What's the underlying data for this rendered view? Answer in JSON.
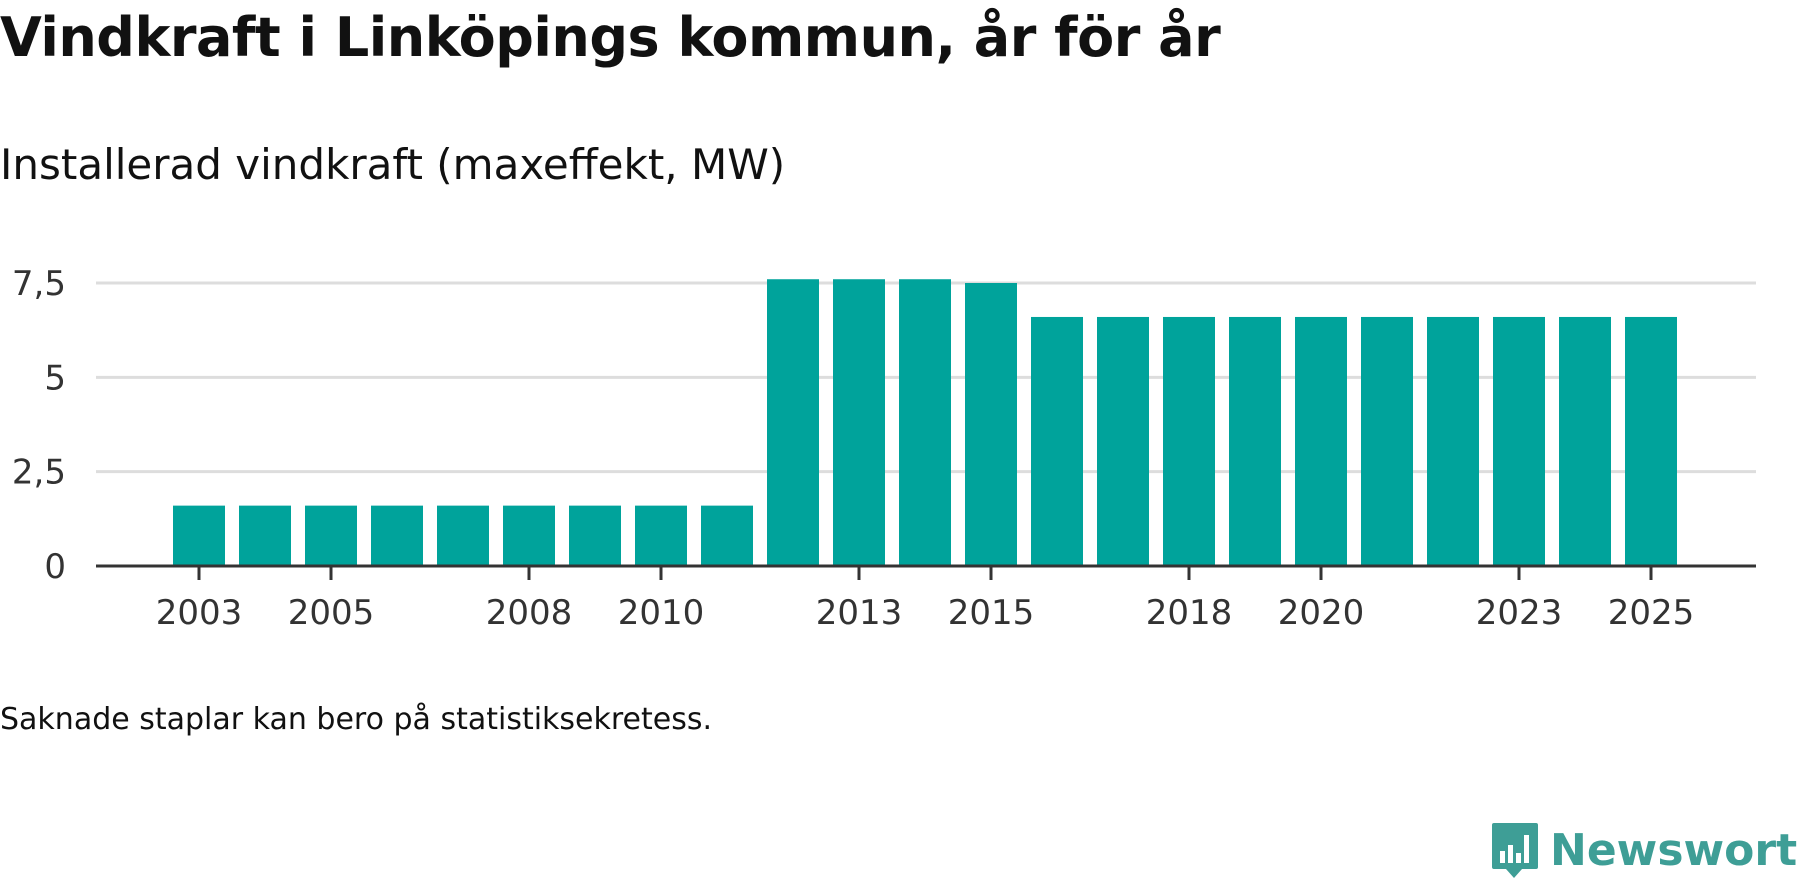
{
  "header": {
    "title": "Vindkraft i Linköpings kommun, år för år",
    "subtitle": "Installerad vindkraft (maxeffekt, MW)"
  },
  "footer": {
    "note": "Saknade staplar kan bero på statistiksekretess.",
    "brand": "Newsworthy"
  },
  "colors": {
    "bar": "#00a39b",
    "brand": "#3e9e96",
    "grid": "#dddddd",
    "axis": "#333333"
  },
  "chart_data": {
    "type": "bar",
    "title": "Vindkraft i Linköpings kommun, år för år",
    "ylabel": "Installerad vindkraft (maxeffekt, MW)",
    "xlabel": "",
    "categories": [
      "2003",
      "2004",
      "2005",
      "2006",
      "2007",
      "2008",
      "2009",
      "2010",
      "2011",
      "2012",
      "2013",
      "2014",
      "2015",
      "2016",
      "2017",
      "2018",
      "2019",
      "2020",
      "2021",
      "2022",
      "2023",
      "2024",
      "2025"
    ],
    "values": [
      1.6,
      1.6,
      1.6,
      1.6,
      1.6,
      1.6,
      1.6,
      1.6,
      1.6,
      7.6,
      7.6,
      7.6,
      7.5,
      6.6,
      6.6,
      6.6,
      6.6,
      6.6,
      6.6,
      6.6,
      6.6,
      6.6,
      6.6
    ],
    "x_tick_labels": [
      "2003",
      "2005",
      "2008",
      "2010",
      "2013",
      "2015",
      "2018",
      "2020",
      "2023",
      "2025"
    ],
    "y_ticks": [
      0,
      2.5,
      5,
      7.5
    ],
    "y_tick_labels": [
      "0",
      "2,5",
      "5",
      "7,5"
    ],
    "ylim": [
      0,
      7.5
    ],
    "grid": true,
    "legend": "none"
  }
}
